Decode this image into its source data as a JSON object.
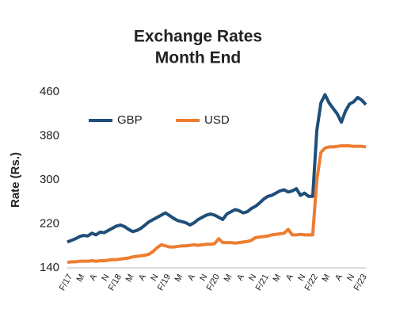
{
  "chart_data": {
    "type": "line",
    "title": "Exchange Rates",
    "subtitle": "Month End",
    "y_label": "Rate (Rs.)",
    "categories": [
      "F/17",
      null,
      null,
      "M",
      null,
      null,
      "A",
      null,
      null,
      "N",
      null,
      null,
      "F/18",
      null,
      null,
      "M",
      null,
      null,
      "A",
      null,
      null,
      "N",
      null,
      null,
      "F/19",
      null,
      null,
      "M",
      null,
      null,
      "A",
      null,
      null,
      "N",
      null,
      null,
      "F/20",
      null,
      null,
      "M",
      null,
      null,
      "A",
      null,
      null,
      "N",
      null,
      null,
      "F/21",
      null,
      null,
      "M",
      null,
      null,
      "A",
      null,
      null,
      "N",
      null,
      null,
      "F/22",
      null,
      null,
      "M",
      null,
      null,
      "A",
      null,
      null,
      "N",
      null,
      null,
      "F/23",
      null
    ],
    "series": [
      {
        "name": "GBP",
        "color": "#1f4e79",
        "values": [
          187,
          190,
          193,
          197,
          199,
          198,
          203,
          200,
          205,
          204,
          208,
          212,
          216,
          218,
          215,
          210,
          206,
          208,
          212,
          218,
          224,
          228,
          232,
          236,
          240,
          235,
          230,
          226,
          224,
          222,
          218,
          222,
          228,
          232,
          236,
          238,
          236,
          232,
          228,
          238,
          242,
          246,
          244,
          240,
          242,
          248,
          252,
          258,
          265,
          270,
          272,
          276,
          280,
          282,
          278,
          280,
          284,
          272,
          276,
          270,
          270,
          390,
          440,
          455,
          440,
          430,
          420,
          405,
          425,
          438,
          442,
          450,
          445,
          437
        ]
      },
      {
        "name": "USD",
        "color": "#ed7d31",
        "values": [
          150,
          151,
          151,
          152,
          152,
          152,
          153,
          152,
          153,
          153,
          154,
          155,
          155,
          156,
          157,
          158,
          160,
          161,
          162,
          163,
          165,
          170,
          177,
          182,
          180,
          178,
          178,
          179,
          180,
          180,
          181,
          182,
          181,
          182,
          183,
          183,
          184,
          193,
          186,
          186,
          186,
          185,
          186,
          187,
          188,
          190,
          195,
          196,
          197,
          198,
          200,
          201,
          202,
          203,
          210,
          200,
          200,
          201,
          200,
          200,
          200,
          300,
          350,
          358,
          360,
          360,
          361,
          362,
          362,
          362,
          361,
          361,
          361,
          360
        ]
      }
    ],
    "ylim": [
      140,
      460
    ],
    "yticks": [
      140,
      220,
      300,
      380,
      460
    ],
    "legend": "top-left"
  }
}
